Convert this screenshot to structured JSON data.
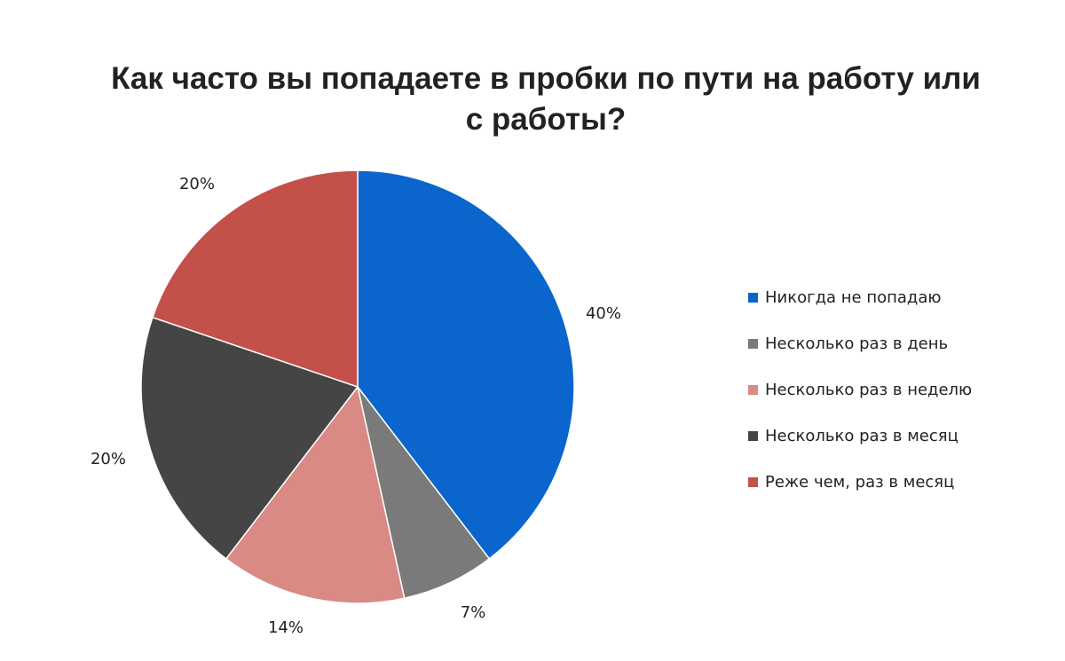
{
  "chart_data": {
    "type": "pie",
    "title_lines": [
      "Как часто вы попадаете в пробки по пути на работу или",
      "с работы?"
    ],
    "categories": [
      "Никогда не попадаю",
      "Несколько раз в день",
      "Несколько раз в неделю",
      "Несколько раз в месяц",
      "Реже чем, раз в месяц"
    ],
    "values": [
      40,
      7,
      14,
      20,
      20
    ],
    "data_labels": [
      "40%",
      "7%",
      "14%",
      "20%",
      "20%"
    ],
    "colors": [
      "#0a66cc",
      "#7a7a7a",
      "#d98a85",
      "#454545",
      "#c4504a"
    ],
    "start_angle_deg": 0,
    "direction": "clockwise",
    "legend_position": "right"
  }
}
